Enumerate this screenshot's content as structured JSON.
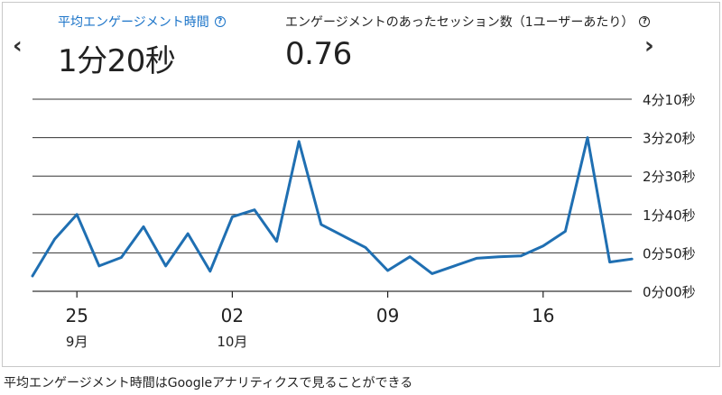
{
  "nav": {
    "prev_glyph": "‹",
    "next_glyph": "›",
    "prev_icon": "chevron-left-icon",
    "next_icon": "chevron-right-icon"
  },
  "metrics": [
    {
      "label": "平均エンゲージメント時間",
      "value": "1分20秒",
      "selected": true,
      "help_icon": "help-circle-icon",
      "help_glyph": "?"
    },
    {
      "label": "エンゲージメントのあったセッション数（1ユーザーあたり）",
      "value": "0.76",
      "selected": false,
      "help_icon": "help-circle-icon",
      "help_glyph": "?"
    }
  ],
  "colors": {
    "line": "#1f6fb2",
    "accent": "#1a73c8",
    "grid": "#333333"
  },
  "chart_data": {
    "type": "line",
    "y_unit": "seconds",
    "ylim": [
      0,
      250
    ],
    "y_ticks": [
      {
        "value": 0,
        "label": "0分00秒"
      },
      {
        "value": 50,
        "label": "0分50秒"
      },
      {
        "value": 100,
        "label": "1分40秒"
      },
      {
        "value": 150,
        "label": "2分30秒"
      },
      {
        "value": 200,
        "label": "3分20秒"
      },
      {
        "value": 250,
        "label": "4分10秒"
      }
    ],
    "x_ticks": [
      {
        "day": 2,
        "label": "25",
        "sublabel": "9月"
      },
      {
        "day": 9,
        "label": "02",
        "sublabel": "10月"
      },
      {
        "day": 16,
        "label": "09",
        "sublabel": ""
      },
      {
        "day": 23,
        "label": "16",
        "sublabel": ""
      }
    ],
    "x_range": [
      0,
      27
    ],
    "series": [
      {
        "values": [
          20,
          68,
          100,
          33,
          44,
          84,
          33,
          75,
          26,
          97,
          106,
          65,
          195,
          87,
          72,
          57,
          27,
          45,
          23,
          33,
          43,
          45,
          46,
          59,
          78,
          200,
          38,
          42
        ]
      }
    ]
  },
  "caption": "平均エンゲージメント時間はGoogleアナリティクスで見ることができる"
}
